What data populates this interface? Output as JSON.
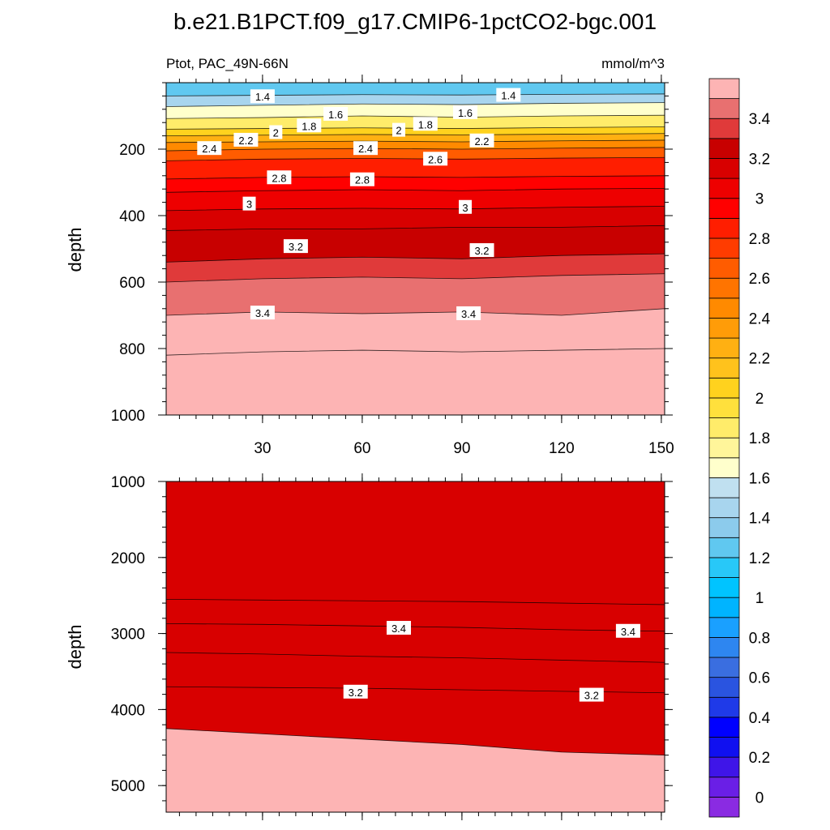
{
  "title": "b.e21.B1PCT.f09_g17.CMIP6-1pctCO2-bgc.001",
  "chart_data": [
    {
      "type": "contour",
      "variable": "Ptot, PAC_49N-66N",
      "units": "mmol/m^3",
      "ylabel": "depth",
      "xlabel": "",
      "xlim": [
        1,
        151
      ],
      "ylim": [
        1000,
        0
      ],
      "xticks": [
        "30",
        "60",
        "90",
        "120",
        "150"
      ],
      "xtick_values": [
        30,
        60,
        90,
        120,
        150
      ],
      "yticks": [
        "200",
        "400",
        "600",
        "800",
        "1000"
      ],
      "ytick_values": [
        200,
        400,
        600,
        800,
        1000
      ],
      "contour_lines": [
        {
          "level": 3.5,
          "depth": [
            820,
            810,
            805,
            810,
            805,
            800
          ]
        },
        {
          "level": 3.4,
          "depth": [
            700,
            690,
            695,
            690,
            700,
            680
          ]
        },
        {
          "level": 3.3,
          "depth": [
            600,
            590,
            585,
            590,
            580,
            575
          ]
        },
        {
          "level": 3.2,
          "depth": [
            540,
            530,
            525,
            530,
            520,
            515
          ]
        },
        {
          "level": 3.1,
          "depth": [
            445,
            440,
            440,
            435,
            435,
            430
          ]
        },
        {
          "level": 3.0,
          "depth": [
            385,
            380,
            378,
            380,
            375,
            372
          ]
        },
        {
          "level": 2.9,
          "depth": [
            330,
            325,
            322,
            325,
            320,
            318
          ]
        },
        {
          "level": 2.8,
          "depth": [
            290,
            285,
            283,
            285,
            282,
            280
          ]
        },
        {
          "level": 2.6,
          "depth": [
            235,
            230,
            228,
            230,
            227,
            225
          ]
        },
        {
          "level": 2.4,
          "depth": [
            205,
            200,
            198,
            200,
            197,
            195
          ]
        },
        {
          "level": 2.2,
          "depth": [
            180,
            178,
            176,
            178,
            175,
            173
          ]
        },
        {
          "level": 2.0,
          "depth": [
            160,
            158,
            156,
            157,
            155,
            153
          ]
        },
        {
          "level": 1.8,
          "depth": [
            140,
            138,
            136,
            138,
            135,
            133
          ]
        },
        {
          "level": 1.6,
          "depth": [
            108,
            105,
            100,
            104,
            100,
            98
          ]
        },
        {
          "level": 1.4,
          "depth": [
            72,
            68,
            64,
            66,
            62,
            60
          ]
        },
        {
          "level": 1.2,
          "depth": [
            40,
            38,
            36,
            37,
            35,
            34
          ]
        }
      ],
      "contour_line_x": [
        1,
        30,
        60,
        90,
        120,
        151
      ],
      "labels": [
        {
          "text": "1.4",
          "x": 30,
          "depth": 42
        },
        {
          "text": "1.4",
          "x": 104,
          "depth": 38
        },
        {
          "text": "1.6",
          "x": 52,
          "depth": 95
        },
        {
          "text": "1.6",
          "x": 91,
          "depth": 90
        },
        {
          "text": "1.8",
          "x": 44,
          "depth": 130
        },
        {
          "text": "1.8",
          "x": 79,
          "depth": 125
        },
        {
          "text": "2",
          "x": 34,
          "depth": 150
        },
        {
          "text": "2",
          "x": 71,
          "depth": 143
        },
        {
          "text": "2.2",
          "x": 25,
          "depth": 173
        },
        {
          "text": "2.2",
          "x": 96,
          "depth": 175
        },
        {
          "text": "2.4",
          "x": 14,
          "depth": 198
        },
        {
          "text": "2.4",
          "x": 61,
          "depth": 198
        },
        {
          "text": "2.6",
          "x": 82,
          "depth": 230
        },
        {
          "text": "2.8",
          "x": 35,
          "depth": 286
        },
        {
          "text": "2.8",
          "x": 60,
          "depth": 292
        },
        {
          "text": "3",
          "x": 26,
          "depth": 365
        },
        {
          "text": "3",
          "x": 91,
          "depth": 375
        },
        {
          "text": "3.2",
          "x": 40,
          "depth": 493
        },
        {
          "text": "3.2",
          "x": 96,
          "depth": 505
        },
        {
          "text": "3.4",
          "x": 30,
          "depth": 693
        },
        {
          "text": "3.4",
          "x": 92,
          "depth": 695
        }
      ]
    },
    {
      "type": "contour",
      "variable": "",
      "units": "",
      "ylabel": "depth",
      "xlabel": "",
      "xlim": [
        1,
        151
      ],
      "ylim": [
        5350,
        1000
      ],
      "yticks": [
        "1000",
        "2000",
        "3000",
        "4000",
        "5000"
      ],
      "ytick_values": [
        1000,
        2000,
        3000,
        4000,
        5000
      ],
      "contour_lines": [
        {
          "level": 3.5,
          "depth": [
            2550,
            2560,
            2570,
            2580,
            2600,
            2620
          ]
        },
        {
          "level": 3.4,
          "depth": [
            2870,
            2880,
            2900,
            2920,
            2950,
            2970
          ]
        },
        {
          "level": 3.3,
          "depth": [
            3250,
            3270,
            3300,
            3320,
            3350,
            3380
          ]
        },
        {
          "level": 3.2,
          "depth": [
            3700,
            3710,
            3720,
            3740,
            3760,
            3780
          ]
        },
        {
          "level": 3.1,
          "depth": [
            4250,
            4320,
            4390,
            4460,
            4560,
            4600
          ]
        }
      ],
      "contour_line_x": [
        1,
        30,
        60,
        90,
        120,
        151
      ],
      "labels": [
        {
          "text": "3.4",
          "x": 71,
          "depth": 2930
        },
        {
          "text": "3.4",
          "x": 140,
          "depth": 2970
        },
        {
          "text": "3.2",
          "x": 58,
          "depth": 3770
        },
        {
          "text": "3.2",
          "x": 129,
          "depth": 3810
        }
      ]
    }
  ],
  "colorbar": {
    "levels": [
      0,
      0.1,
      0.2,
      0.3,
      0.4,
      0.5,
      0.6,
      0.7,
      0.8,
      0.9,
      1,
      1.1,
      1.2,
      1.3,
      1.4,
      1.5,
      1.6,
      1.7,
      1.8,
      1.9,
      2,
      2.1,
      2.2,
      2.3,
      2.4,
      2.5,
      2.6,
      2.7,
      2.8,
      2.9,
      3,
      3.1,
      3.2,
      3.3,
      3.4,
      3.5
    ],
    "tick_labels": [
      "0",
      "0.2",
      "0.4",
      "0.6",
      "0.8",
      "1",
      "1.2",
      "1.4",
      "1.6",
      "1.8",
      "2",
      "2.2",
      "2.4",
      "2.6",
      "2.8",
      "3",
      "3.2",
      "3.4"
    ],
    "colors": [
      "#8a2be2",
      "#6a1fe6",
      "#3f15e8",
      "#1010f0",
      "#0000ff",
      "#1f3ae8",
      "#2a54e0",
      "#3a6ee0",
      "#2e86f0",
      "#1aa0ff",
      "#00b4ff",
      "#00c4ff",
      "#28c8f8",
      "#60c8f0",
      "#8ccbec",
      "#a8d5ee",
      "#c0e0f0",
      "#ffffcc",
      "#fff59a",
      "#ffec6a",
      "#ffe03c",
      "#ffd21e",
      "#ffc21c",
      "#ffb012",
      "#ff9c08",
      "#ff8a00",
      "#ff7400",
      "#ff5c00",
      "#ff3c00",
      "#ff1e00",
      "#ff0000",
      "#ee0000",
      "#d80000",
      "#c80000",
      "#e03a3a",
      "#e87070",
      "#fdb4b4"
    ]
  }
}
